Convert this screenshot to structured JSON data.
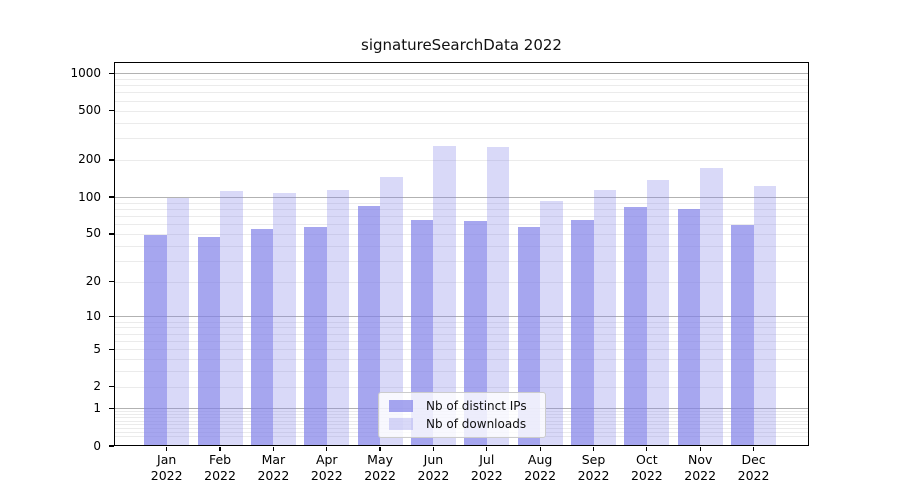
{
  "title": "signatureSearchData 2022",
  "chart_data": {
    "type": "bar",
    "title": "signatureSearchData 2022",
    "categories": [
      "Jan 2022",
      "Feb 2022",
      "Mar 2022",
      "Apr 2022",
      "May 2022",
      "Jun 2022",
      "Jul 2022",
      "Aug 2022",
      "Sep 2022",
      "Oct 2022",
      "Nov 2022",
      "Dec 2022"
    ],
    "series": [
      {
        "name": "Nb of distinct IPs",
        "color": "rgba(128,128,232,0.7)",
        "values": [
          49,
          47,
          55,
          57,
          84,
          65,
          64,
          57,
          65,
          83,
          80,
          59
        ]
      },
      {
        "name": "Nb of downloads",
        "color": "rgba(128,128,232,0.3)",
        "values": [
          98,
          112,
          107,
          114,
          145,
          261,
          256,
          93,
          114,
          137,
          172,
          123
        ]
      }
    ],
    "xlabel": "",
    "ylabel": "",
    "yscale": "log1p-symlog",
    "ylim": [
      0,
      1230
    ],
    "ytick_labels": [
      "1000",
      "500",
      "200",
      "100",
      "50",
      "20",
      "10",
      "5",
      "2",
      "1",
      "0"
    ],
    "ytick_values": [
      1000,
      500,
      200,
      100,
      50,
      20,
      10,
      5,
      2,
      1,
      0
    ],
    "grid": "major+minor",
    "legend_position": "lower center"
  },
  "legend": {
    "items": [
      {
        "label": "Nb of distinct IPs"
      },
      {
        "label": "Nb of downloads"
      }
    ]
  },
  "colors": {
    "bar_distinct_ips": "rgba(128,128,232,0.7)",
    "bar_downloads": "rgba(128,128,232,0.3)",
    "major_grid": "#b2b2b2",
    "minor_grid": "#ebebeb",
    "axis": "#000000",
    "background": "#ffffff"
  }
}
